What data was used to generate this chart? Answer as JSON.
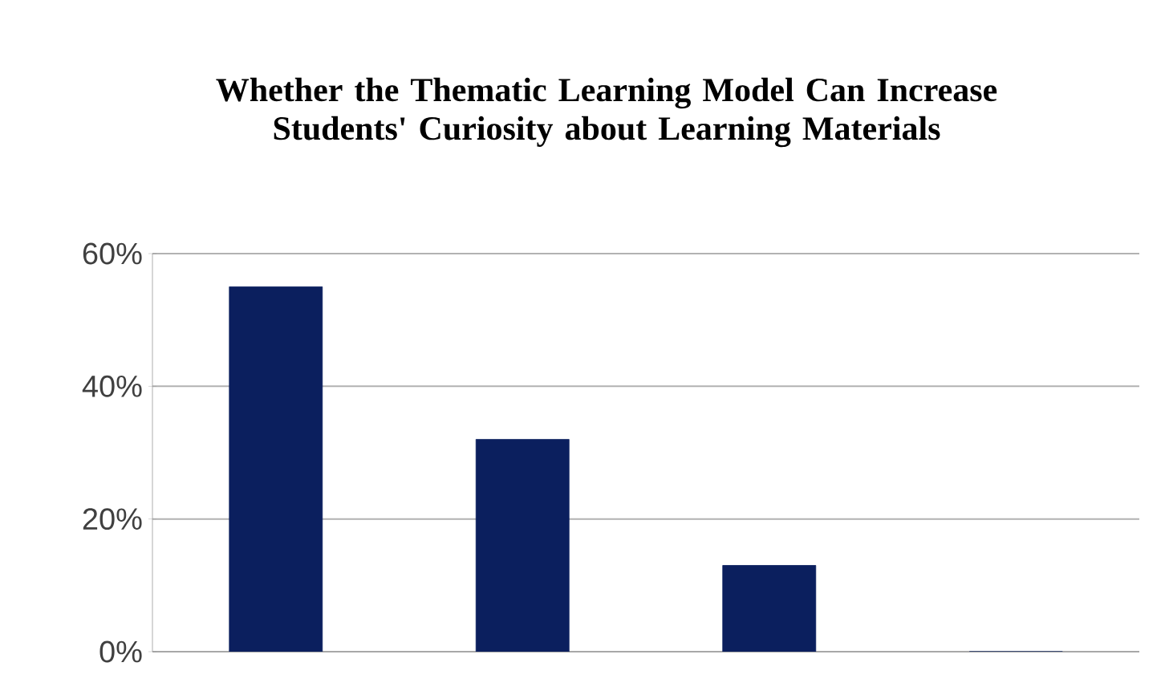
{
  "chart_data": {
    "type": "bar",
    "title": "Whether the Thematic Learning Model Can Increase Students' Curiosity  about Learning Materials",
    "categories": [
      null,
      null,
      null,
      null
    ],
    "values": [
      55,
      32,
      13,
      0
    ],
    "color": "#0b1f5e",
    "ylim": [
      0,
      60
    ],
    "yticks": [
      {
        "value": 0,
        "label": "0%"
      },
      {
        "value": 20,
        "label": "20%"
      },
      {
        "value": 40,
        "label": "40%"
      },
      {
        "value": 60,
        "label": "60%"
      }
    ],
    "grid": "y"
  }
}
